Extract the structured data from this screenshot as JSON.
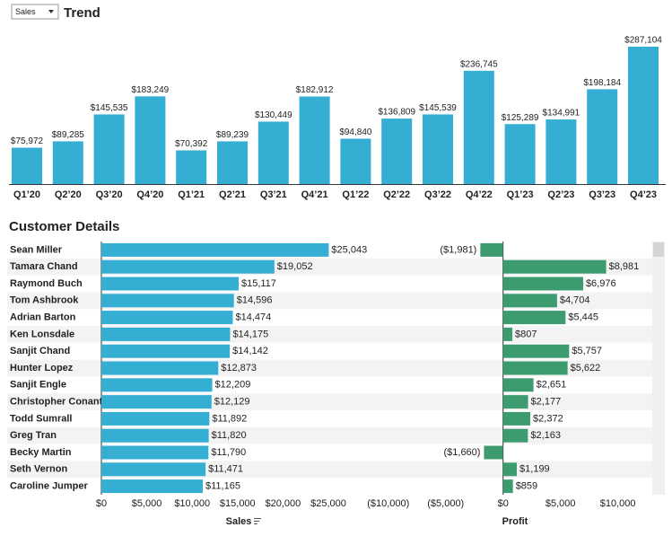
{
  "chart_data": [
    {
      "type": "bar",
      "title": "Trend",
      "selector": "Sales",
      "categories": [
        "Q1’20",
        "Q2’20",
        "Q3’20",
        "Q4’20",
        "Q1’21",
        "Q2’21",
        "Q3’21",
        "Q4’21",
        "Q1’22",
        "Q2’22",
        "Q3’22",
        "Q4’22",
        "Q1’23",
        "Q2’23",
        "Q3’23",
        "Q4’23"
      ],
      "values": [
        75972,
        89285,
        145535,
        183249,
        70392,
        89239,
        130449,
        182912,
        94840,
        136809,
        145539,
        236745,
        125289,
        134991,
        198184,
        287104
      ],
      "value_labels": [
        "$75,972",
        "$89,285",
        "$145,535",
        "$183,249",
        "$70,392",
        "$89,239",
        "$130,449",
        "$182,912",
        "$94,840",
        "$136,809",
        "$145,539",
        "$236,745",
        "$125,289",
        "$134,991",
        "$198,184",
        "$287,104"
      ],
      "color": "#35aed3"
    },
    {
      "type": "hbar",
      "title": "Customer Details",
      "xlabel": "Sales",
      "categories": [
        "Sean Miller",
        "Tamara Chand",
        "Raymond Buch",
        "Tom Ashbrook",
        "Adrian Barton",
        "Ken Lonsdale",
        "Sanjit Chand",
        "Hunter Lopez",
        "Sanjit Engle",
        "Christopher Conant",
        "Todd Sumrall",
        "Greg Tran",
        "Becky Martin",
        "Seth Vernon",
        "Caroline Jumper"
      ],
      "values": [
        25043,
        19052,
        15117,
        14596,
        14474,
        14175,
        14142,
        12873,
        12209,
        12129,
        11892,
        11820,
        11790,
        11471,
        11165
      ],
      "value_labels": [
        "$25,043",
        "$19,052",
        "$15,117",
        "$14,596",
        "$14,474",
        "$14,175",
        "$14,142",
        "$12,873",
        "$12,209",
        "$12,129",
        "$11,892",
        "$11,820",
        "$11,790",
        "$11,471",
        "$11,165"
      ],
      "color": "#35aed3",
      "xlim": [
        0,
        30000
      ],
      "xticks": [
        {
          "value": 0,
          "label": "$0"
        },
        {
          "value": 5000,
          "label": "$5,000"
        },
        {
          "value": 10000,
          "label": "$10,000"
        },
        {
          "value": 15000,
          "label": "$15,000"
        },
        {
          "value": 20000,
          "label": "$20,000"
        },
        {
          "value": 25000,
          "label": "$25,000"
        }
      ]
    },
    {
      "type": "hbar",
      "xlabel": "Profit",
      "values": [
        -1981,
        8981,
        6976,
        4704,
        5445,
        807,
        5757,
        5622,
        2651,
        2177,
        2372,
        2163,
        -1660,
        1199,
        859
      ],
      "value_labels": [
        "($1,981)",
        "$8,981",
        "$6,976",
        "$4,704",
        "$5,445",
        "$807",
        "$5,757",
        "$5,622",
        "$2,651",
        "$2,177",
        "$2,372",
        "$2,163",
        "($1,660)",
        "$1,199",
        "$859"
      ],
      "color": "#3d9c6f",
      "xlim": [
        -11000,
        13000
      ],
      "xticks": [
        {
          "value": -10000,
          "label": "($10,000)"
        },
        {
          "value": -5000,
          "label": "($5,000)"
        },
        {
          "value": 0,
          "label": "$0"
        },
        {
          "value": 5000,
          "label": "$5,000"
        },
        {
          "value": 10000,
          "label": "$10,000"
        }
      ]
    }
  ]
}
